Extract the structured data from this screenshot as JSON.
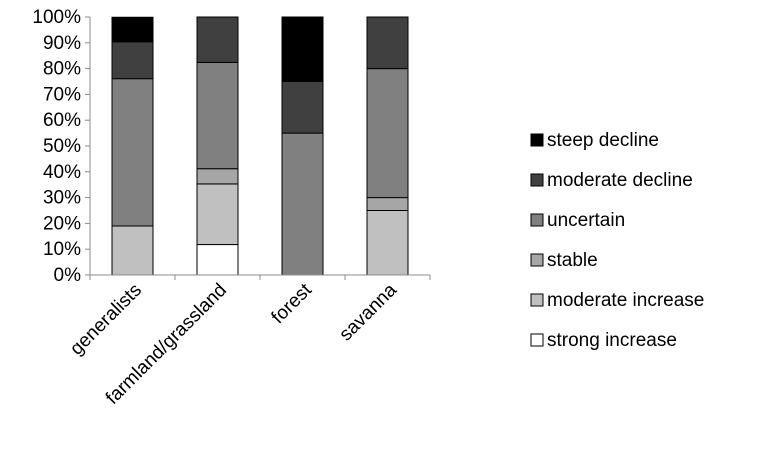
{
  "chart_data": {
    "type": "bar",
    "stacked": true,
    "percent": true,
    "title": "",
    "xlabel": "",
    "ylabel": "",
    "ylim": [
      0,
      100
    ],
    "yticks": [
      "0%",
      "10%",
      "20%",
      "30%",
      "40%",
      "50%",
      "60%",
      "70%",
      "80%",
      "90%",
      "100%"
    ],
    "grid": false,
    "legend_position": "right",
    "categories": [
      "generalists",
      "farmland/grassland",
      "forest",
      "savanna"
    ],
    "series": [
      {
        "name": "strong increase",
        "color": "#ffffff",
        "values": [
          0,
          11.8,
          0,
          0
        ]
      },
      {
        "name": "moderate increase",
        "color": "#c0c0c0",
        "values": [
          19.0,
          23.5,
          0,
          25.0
        ]
      },
      {
        "name": "stable",
        "color": "#a6a6a6",
        "values": [
          0,
          5.9,
          0,
          5.0
        ]
      },
      {
        "name": "uncertain",
        "color": "#808080",
        "values": [
          57.1,
          41.2,
          55.0,
          50.0
        ]
      },
      {
        "name": "moderate decline",
        "color": "#404040",
        "values": [
          14.3,
          17.6,
          20.0,
          20.0
        ]
      },
      {
        "name": "steep decline",
        "color": "#000000",
        "values": [
          9.5,
          0,
          25.0,
          0
        ]
      }
    ]
  }
}
